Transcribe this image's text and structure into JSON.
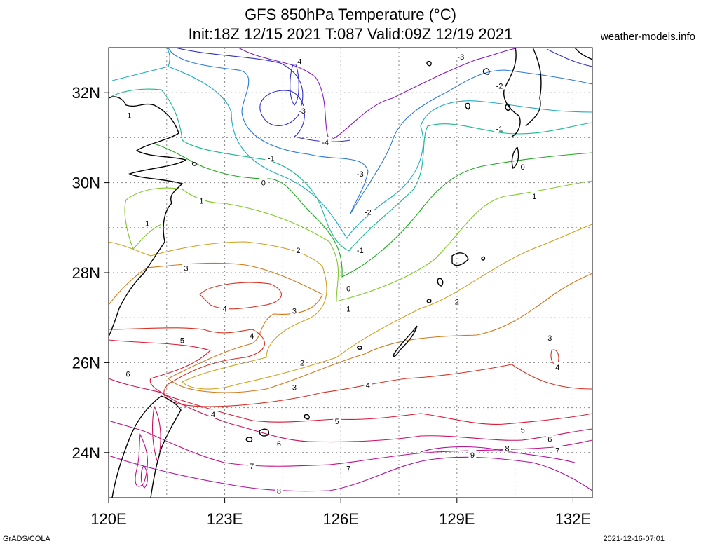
{
  "header": {
    "title_line1": "GFS 850hPa Temperature (°C)",
    "title_line2": "Init:18Z 12/15 2021 T:087 Valid:09Z 12/19 2021",
    "credit": "weather-models.info"
  },
  "footer": {
    "left": "GrADS/COLA",
    "right": "2021-12-16-07:01"
  },
  "map": {
    "lon_labels": [
      "120E",
      "123E",
      "126E",
      "129E",
      "132E"
    ],
    "lat_labels": [
      "32N",
      "30N",
      "28N",
      "26N",
      "24N"
    ],
    "contour_labels": [
      {
        "text": "-4",
        "lon": 124.9,
        "lat": 32.7
      },
      {
        "text": "-3",
        "lon": 129.1,
        "lat": 32.8
      },
      {
        "text": "-2",
        "lon": 130.1,
        "lat": 32.15
      },
      {
        "text": "-3",
        "lon": 125.0,
        "lat": 31.6
      },
      {
        "text": "-4",
        "lon": 125.6,
        "lat": 30.9
      },
      {
        "text": "-1",
        "lon": 120.5,
        "lat": 31.5
      },
      {
        "text": "-1",
        "lon": 130.1,
        "lat": 31.2
      },
      {
        "text": "-1",
        "lon": 124.2,
        "lat": 30.55
      },
      {
        "text": "-3",
        "lon": 126.5,
        "lat": 30.2
      },
      {
        "text": "0",
        "lon": 130.7,
        "lat": 30.35
      },
      {
        "text": "0",
        "lon": 124.0,
        "lat": 30.0
      },
      {
        "text": "-2",
        "lon": 126.7,
        "lat": 29.35
      },
      {
        "text": "1",
        "lon": 122.4,
        "lat": 29.6
      },
      {
        "text": "1",
        "lon": 131.0,
        "lat": 29.7
      },
      {
        "text": "1",
        "lon": 121.0,
        "lat": 29.1
      },
      {
        "text": "2",
        "lon": 124.9,
        "lat": 28.5
      },
      {
        "text": "-1",
        "lon": 126.5,
        "lat": 28.5
      },
      {
        "text": "3",
        "lon": 122.0,
        "lat": 28.1
      },
      {
        "text": "0",
        "lon": 126.2,
        "lat": 27.65
      },
      {
        "text": "2",
        "lon": 129.0,
        "lat": 27.35
      },
      {
        "text": "4",
        "lon": 123.0,
        "lat": 27.2
      },
      {
        "text": "3",
        "lon": 124.8,
        "lat": 27.15
      },
      {
        "text": "1",
        "lon": 126.2,
        "lat": 27.2
      },
      {
        "text": "4",
        "lon": 123.7,
        "lat": 26.6
      },
      {
        "text": "5",
        "lon": 121.9,
        "lat": 26.5
      },
      {
        "text": "3",
        "lon": 131.4,
        "lat": 26.55
      },
      {
        "text": "2",
        "lon": 125.0,
        "lat": 26.0
      },
      {
        "text": "6",
        "lon": 120.5,
        "lat": 25.75
      },
      {
        "text": "4",
        "lon": 131.6,
        "lat": 25.9
      },
      {
        "text": "3",
        "lon": 124.8,
        "lat": 25.45
      },
      {
        "text": "4",
        "lon": 126.7,
        "lat": 25.5
      },
      {
        "text": "4",
        "lon": 122.7,
        "lat": 24.85
      },
      {
        "text": "5",
        "lon": 125.9,
        "lat": 24.7
      },
      {
        "text": "5",
        "lon": 130.7,
        "lat": 24.5
      },
      {
        "text": "6",
        "lon": 131.4,
        "lat": 24.3
      },
      {
        "text": "6",
        "lon": 124.4,
        "lat": 24.2
      },
      {
        "text": "8",
        "lon": 130.3,
        "lat": 24.1
      },
      {
        "text": "7",
        "lon": 131.6,
        "lat": 24.05
      },
      {
        "text": "9",
        "lon": 129.4,
        "lat": 23.95
      },
      {
        "text": "7",
        "lon": 123.7,
        "lat": 23.7
      },
      {
        "text": "7",
        "lon": 126.2,
        "lat": 23.65
      },
      {
        "text": "8",
        "lon": 124.4,
        "lat": 23.15
      }
    ]
  },
  "colors": {
    "minus4": "#3030c8",
    "minus3": "#2878d8",
    "minus2": "#1caac8",
    "minus1": "#18b890",
    "zero": "#20a820",
    "plus1": "#80c828",
    "plus2": "#d0a020",
    "plus3": "#d07818",
    "plus4": "#d83020",
    "plus5": "#d81838",
    "plus6": "#c81060",
    "plus7": "#c0108a",
    "plus8": "#b010a0",
    "purple": "#8a18c0",
    "coast": "#000000",
    "grid": "#888888"
  }
}
